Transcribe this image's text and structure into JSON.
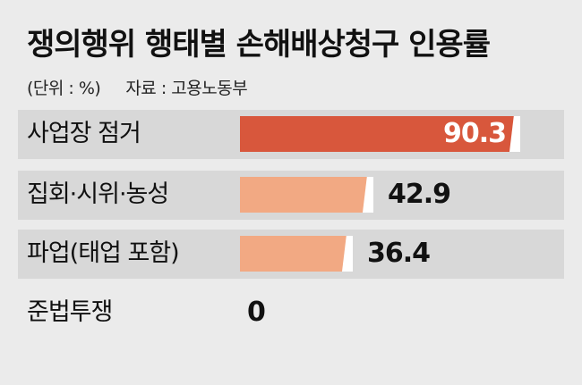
{
  "title": "쟁의행위 행태별 손해배상청구 인용률",
  "unit": "(단위 : %)",
  "source": "자료 : 고용노동부",
  "colors": {
    "highlight": "#d8573c",
    "bar": "#f2a983",
    "background": "#ebebeb",
    "row_band": "#d8d8d8"
  },
  "chart_data": {
    "type": "bar",
    "orientation": "horizontal",
    "title": "쟁의행위 행태별 손해배상청구 인용률",
    "unit": "%",
    "categories": [
      "사업장 점거",
      "집회·시위·농성",
      "파업(태업 포함)",
      "준법투쟁"
    ],
    "values": [
      90.3,
      42.9,
      36.4,
      0
    ],
    "value_labels": [
      "90.3",
      "42.9",
      "36.4",
      "0"
    ],
    "highlight_index": 0,
    "xlim": [
      0,
      100
    ]
  }
}
